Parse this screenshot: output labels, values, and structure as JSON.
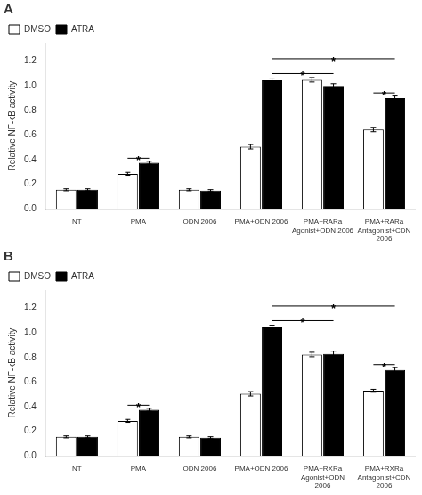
{
  "chart_data": [
    {
      "type": "bar",
      "title": "A",
      "categories": [
        "NT",
        "PMA",
        "ODN 2006",
        "PMA+ODN 2006",
        "PMA+RARa\nAgonist+ODN 2006",
        "PMA+RARa\nAntagonist+CDN\n2006"
      ],
      "series": [
        {
          "name": "DMSO",
          "color": "white",
          "values": [
            0.155,
            0.285,
            0.155,
            0.505,
            1.05,
            0.645
          ],
          "errors": [
            0.008,
            0.012,
            0.008,
            0.018,
            0.018,
            0.018
          ]
        },
        {
          "name": "ATRA",
          "color": "black",
          "values": [
            0.155,
            0.375,
            0.148,
            1.045,
            1.0,
            0.9
          ],
          "errors": [
            0.008,
            0.012,
            0.008,
            0.018,
            0.018,
            0.018
          ]
        }
      ],
      "ylabel": "Relative NF-κB activity",
      "ylim": [
        0,
        1.35
      ],
      "yticks": [
        {
          "value": 0,
          "label": "0.0"
        },
        0.2,
        0.4,
        0.6,
        0.8,
        {
          "value": 1.0,
          "label": "1.0"
        },
        1.2
      ],
      "grid": false,
      "legend": "upper left",
      "annotations": [
        {
          "text": "*",
          "y": 0.412,
          "from": {
            "category": "PMA",
            "series": "DMSO"
          },
          "to": {
            "category": "PMA",
            "series": "ATRA"
          }
        },
        {
          "text": "*",
          "y": 1.1,
          "from": {
            "category": "PMA+ODN 2006",
            "series": "ATRA"
          },
          "to": {
            "category": "PMA+RARa\nAgonist+ODN 2006",
            "series": "ATRA"
          }
        },
        {
          "text": "*",
          "y": 1.22,
          "from": {
            "category": "PMA+ODN 2006",
            "series": "ATRA"
          },
          "to": {
            "category": "PMA+RARa\nAntagonist+CDN\n2006",
            "series": "ATRA"
          }
        },
        {
          "text": "*",
          "y": 0.943,
          "from": {
            "category": "PMA+RARa\nAntagonist+CDN\n2006",
            "series": "DMSO"
          },
          "to": {
            "category": "PMA+RARa\nAntagonist+CDN\n2006",
            "series": "ATRA"
          }
        }
      ]
    },
    {
      "type": "bar",
      "title": "B",
      "categories": [
        "NT",
        "PMA",
        "ODN 2006",
        "PMA+ODN 2006",
        "PMA+RXRa\nAgonist+ODN\n2006",
        "PMA+RXRa\nAntagonist+CDN\n2006"
      ],
      "series": [
        {
          "name": "DMSO",
          "color": "white",
          "values": [
            0.155,
            0.285,
            0.155,
            0.505,
            0.825,
            0.53
          ],
          "errors": [
            0.008,
            0.012,
            0.008,
            0.018,
            0.018,
            0.012
          ]
        },
        {
          "name": "ATRA",
          "color": "black",
          "values": [
            0.155,
            0.375,
            0.148,
            1.045,
            0.83,
            0.7
          ],
          "errors": [
            0.008,
            0.012,
            0.008,
            0.018,
            0.022,
            0.018
          ]
        }
      ],
      "ylabel": "Relative NF-κB activity",
      "ylim": [
        0,
        1.35
      ],
      "yticks": [
        {
          "value": 0,
          "label": "0.0"
        },
        0.2,
        0.4,
        0.6,
        0.8,
        {
          "value": 1.0,
          "label": "1.0"
        },
        1.2
      ],
      "grid": false,
      "legend": "upper left",
      "annotations": [
        {
          "text": "*",
          "y": 0.412,
          "from": {
            "category": "PMA",
            "series": "DMSO"
          },
          "to": {
            "category": "PMA",
            "series": "ATRA"
          }
        },
        {
          "text": "*",
          "y": 1.1,
          "from": {
            "category": "PMA+ODN 2006",
            "series": "ATRA"
          },
          "to": {
            "category": "PMA+RXRa\nAgonist+ODN\n2006",
            "series": "ATRA"
          }
        },
        {
          "text": "*",
          "y": 1.22,
          "from": {
            "category": "PMA+ODN 2006",
            "series": "ATRA"
          },
          "to": {
            "category": "PMA+RXRa\nAntagonist+CDN\n2006",
            "series": "ATRA"
          }
        },
        {
          "text": "*",
          "y": 0.743,
          "from": {
            "category": "PMA+RXRa\nAntagonist+CDN\n2006",
            "series": "DMSO"
          },
          "to": {
            "category": "PMA+RXRa\nAntagonist+CDN\n2006",
            "series": "ATRA"
          }
        }
      ]
    }
  ]
}
